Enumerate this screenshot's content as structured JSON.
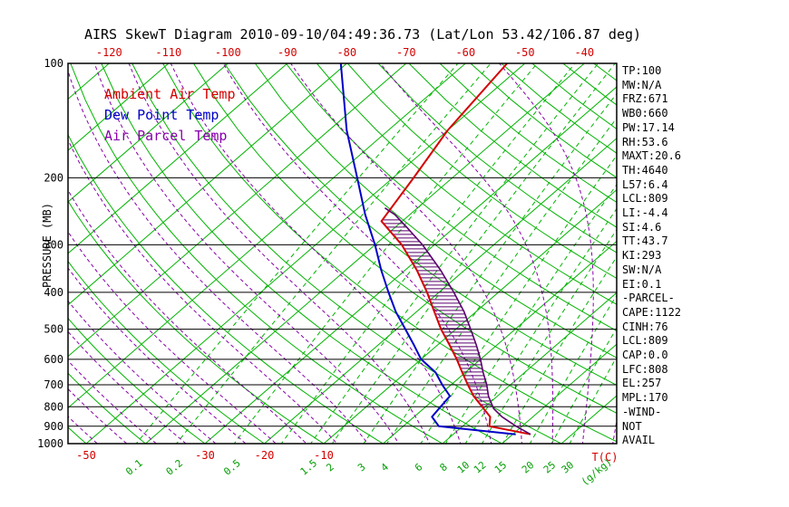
{
  "title": "AIRS SkewT Diagram 2010-09-10/04:49:36.73 (Lat/Lon 53.42/106.87 deg)",
  "legend": {
    "items": [
      {
        "label": "Ambient Air Temp",
        "color": "#d40000"
      },
      {
        "label": "Dew Point Temp",
        "color": "#0000c8"
      },
      {
        "label": "Air Parcel Temp",
        "color": "#8800aa"
      }
    ]
  },
  "axes": {
    "pressure_label": "PRESSURE (MB)",
    "pressure_ticks": [
      100,
      200,
      300,
      400,
      500,
      600,
      700,
      800,
      900,
      1000
    ],
    "top_temp_ticks": [
      -120,
      -110,
      -100,
      -90,
      -80,
      -70,
      -60,
      -50,
      -40
    ],
    "bottom_temp_ticks": [
      -50,
      -30,
      -20,
      -10
    ],
    "temp_unit_label": "T(C)",
    "mixing_ratio_ticks": [
      0.1,
      0.2,
      0.5,
      1.5,
      2,
      3,
      4,
      6,
      8,
      10,
      12,
      15,
      20,
      25,
      30
    ],
    "mixing_unit_label": "(g/kg)"
  },
  "colors": {
    "isotherm": "#00b400",
    "dry_adiabat": "#00b400",
    "mixing_ratio": "#00b400",
    "moist_adiabat": "#8800aa",
    "ambient": "#d40000",
    "dewpoint": "#0000c8",
    "parcel": "#5a006e",
    "axis": "#000000"
  },
  "chart_data": {
    "type": "skewt",
    "pressure_range": [
      100,
      1050
    ],
    "temp_at_bottom_range": [
      -50,
      40
    ],
    "isotherms": {
      "start": -130,
      "end": 40,
      "step": 10
    },
    "dry_adiabats": {
      "start": -50,
      "end": 190,
      "step": 10
    },
    "moist_adiabats": {
      "start": -45,
      "end": 45,
      "step": 5
    },
    "mixing_ratio_lines": [
      0.1,
      0.2,
      0.5,
      1,
      1.5,
      2,
      3,
      4,
      6,
      8,
      10,
      12,
      15,
      20,
      25,
      30
    ],
    "series": [
      {
        "name": "ambient-air-temp",
        "color_key": "ambient",
        "points_p_t": [
          [
            945,
            23
          ],
          [
            900,
            14.5
          ],
          [
            850,
            12.8
          ],
          [
            800,
            9.5
          ],
          [
            750,
            6
          ],
          [
            700,
            2.8
          ],
          [
            650,
            -0.5
          ],
          [
            600,
            -4
          ],
          [
            550,
            -8
          ],
          [
            500,
            -12.5
          ],
          [
            450,
            -17
          ],
          [
            400,
            -22
          ],
          [
            350,
            -28
          ],
          [
            300,
            -35.5
          ],
          [
            260,
            -43.5
          ],
          [
            200,
            -46.5
          ],
          [
            150,
            -50
          ],
          [
            100,
            -53
          ]
        ]
      },
      {
        "name": "dew-point-temp",
        "color_key": "dewpoint",
        "points_p_t": [
          [
            945,
            20.5
          ],
          [
            900,
            6
          ],
          [
            850,
            3
          ],
          [
            800,
            2.5
          ],
          [
            750,
            2
          ],
          [
            700,
            -1.5
          ],
          [
            650,
            -5
          ],
          [
            600,
            -10
          ],
          [
            550,
            -14
          ],
          [
            500,
            -18.5
          ],
          [
            450,
            -23.5
          ],
          [
            400,
            -28.5
          ],
          [
            350,
            -34
          ],
          [
            300,
            -40
          ],
          [
            250,
            -47.5
          ],
          [
            200,
            -56
          ],
          [
            150,
            -67
          ],
          [
            100,
            -81
          ]
        ]
      },
      {
        "name": "air-parcel-temp",
        "color_key": "parcel",
        "points_p_t": [
          [
            945,
            23
          ],
          [
            900,
            19
          ],
          [
            850,
            14.8
          ],
          [
            809,
            11.8
          ],
          [
            750,
            8.5
          ],
          [
            700,
            6
          ],
          [
            650,
            3
          ],
          [
            600,
            0
          ],
          [
            550,
            -3.5
          ],
          [
            500,
            -7.5
          ],
          [
            450,
            -12
          ],
          [
            400,
            -17.5
          ],
          [
            350,
            -24
          ],
          [
            300,
            -32
          ],
          [
            270,
            -38
          ],
          [
            250,
            -42.5
          ],
          [
            240,
            -45.5
          ]
        ]
      }
    ],
    "cape_hatch": {
      "pressure_from": 800,
      "pressure_to": 258
    }
  },
  "stats_panel": {
    "items": [
      "TP:100",
      "MW:N/A",
      "FRZ:671",
      "WB0:660",
      "PW:17.14",
      "RH:53.6",
      "MAXT:20.6",
      "TH:4640",
      "L57:6.4",
      "LCL:809",
      "LI:-4.4",
      "SI:4.6",
      "TT:43.7",
      "KI:293",
      "SW:N/A",
      "EI:0.1",
      "-PARCEL-",
      "CAPE:1122",
      "CINH:76",
      "LCL:809",
      "CAP:0.0",
      "LFC:808",
      "EL:257",
      "MPL:170",
      "-WIND-",
      "NOT",
      "AVAIL"
    ]
  }
}
